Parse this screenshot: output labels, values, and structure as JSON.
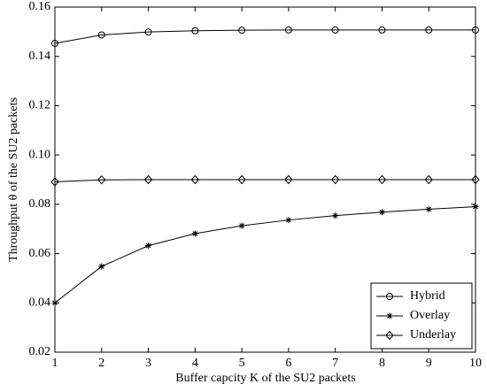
{
  "chart_data": {
    "type": "line",
    "xlabel": "Buffer capcity K of the SU2 packets",
    "ylabel": "Throughput θ of the SU2 packets",
    "x": [
      1,
      2,
      3,
      4,
      5,
      6,
      7,
      8,
      9,
      10
    ],
    "series": [
      {
        "name": "Hybrid",
        "color": "#000000",
        "marker": "circle",
        "values": [
          0.1453,
          0.1487,
          0.1499,
          0.1504,
          0.1506,
          0.1507,
          0.1507,
          0.1507,
          0.1507,
          0.1507
        ]
      },
      {
        "name": "Overlay",
        "color": "#000000",
        "marker": "star",
        "values": [
          0.04,
          0.0548,
          0.0632,
          0.0681,
          0.0713,
          0.0736,
          0.0754,
          0.0768,
          0.078,
          0.079
        ]
      },
      {
        "name": "Underlay",
        "color": "#000000",
        "marker": "diamond",
        "values": [
          0.0891,
          0.0899,
          0.09,
          0.09,
          0.09,
          0.09,
          0.09,
          0.09,
          0.09,
          0.09
        ]
      }
    ],
    "xlim": [
      1,
      10
    ],
    "xticks": [
      1,
      2,
      3,
      4,
      5,
      6,
      7,
      8,
      9,
      10
    ],
    "ylim": [
      0.02,
      0.16
    ],
    "yticks": [
      0.02,
      0.04,
      0.06,
      0.08,
      {
        "value": 0.1,
        "label": "0.10"
      },
      0.12,
      0.14,
      0.16
    ],
    "grid": false,
    "legend": "lower right"
  }
}
